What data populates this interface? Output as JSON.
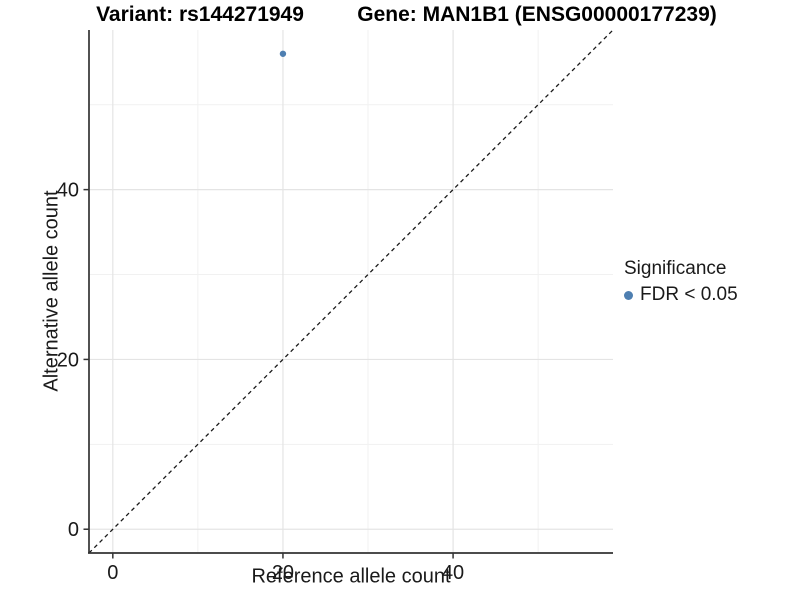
{
  "titles": {
    "variant": "Variant: rs144271949",
    "gene": "Gene: MAN1B1 (ENSG00000177239)"
  },
  "axes": {
    "x_label": "Reference allele count",
    "y_label": "Alternative allele count"
  },
  "legend": {
    "title": "Significance",
    "items": [
      {
        "label": "FDR < 0.05",
        "color": "#4E7FB1"
      }
    ]
  },
  "chart_data": {
    "type": "scatter",
    "title": "Variant: rs144271949 | Gene: MAN1B1 (ENSG00000177239)",
    "xlabel": "Reference allele count",
    "ylabel": "Alternative allele count",
    "series": [
      {
        "name": "FDR < 0.05",
        "color": "#4E7FB1",
        "points": [
          {
            "x": 20,
            "y": 56
          }
        ]
      }
    ],
    "reference_line": {
      "type": "identity y=x",
      "style": "dashed",
      "color": "#1a1a1a"
    },
    "xlim": [
      -2.8,
      58.8
    ],
    "ylim": [
      -2.8,
      58.8
    ],
    "x_major_ticks": [
      0,
      20,
      40
    ],
    "y_major_ticks": [
      0,
      20,
      40
    ],
    "x_minor_ticks": [
      10,
      30,
      50
    ],
    "y_minor_ticks": [
      10,
      30,
      50
    ],
    "grid": true,
    "legend_position": "right",
    "colors": {
      "grid_major": "#e4e4e4",
      "grid_minor": "#f1f1f1",
      "axis_line": "#333333",
      "tick_text": "#1a1a1a"
    }
  }
}
